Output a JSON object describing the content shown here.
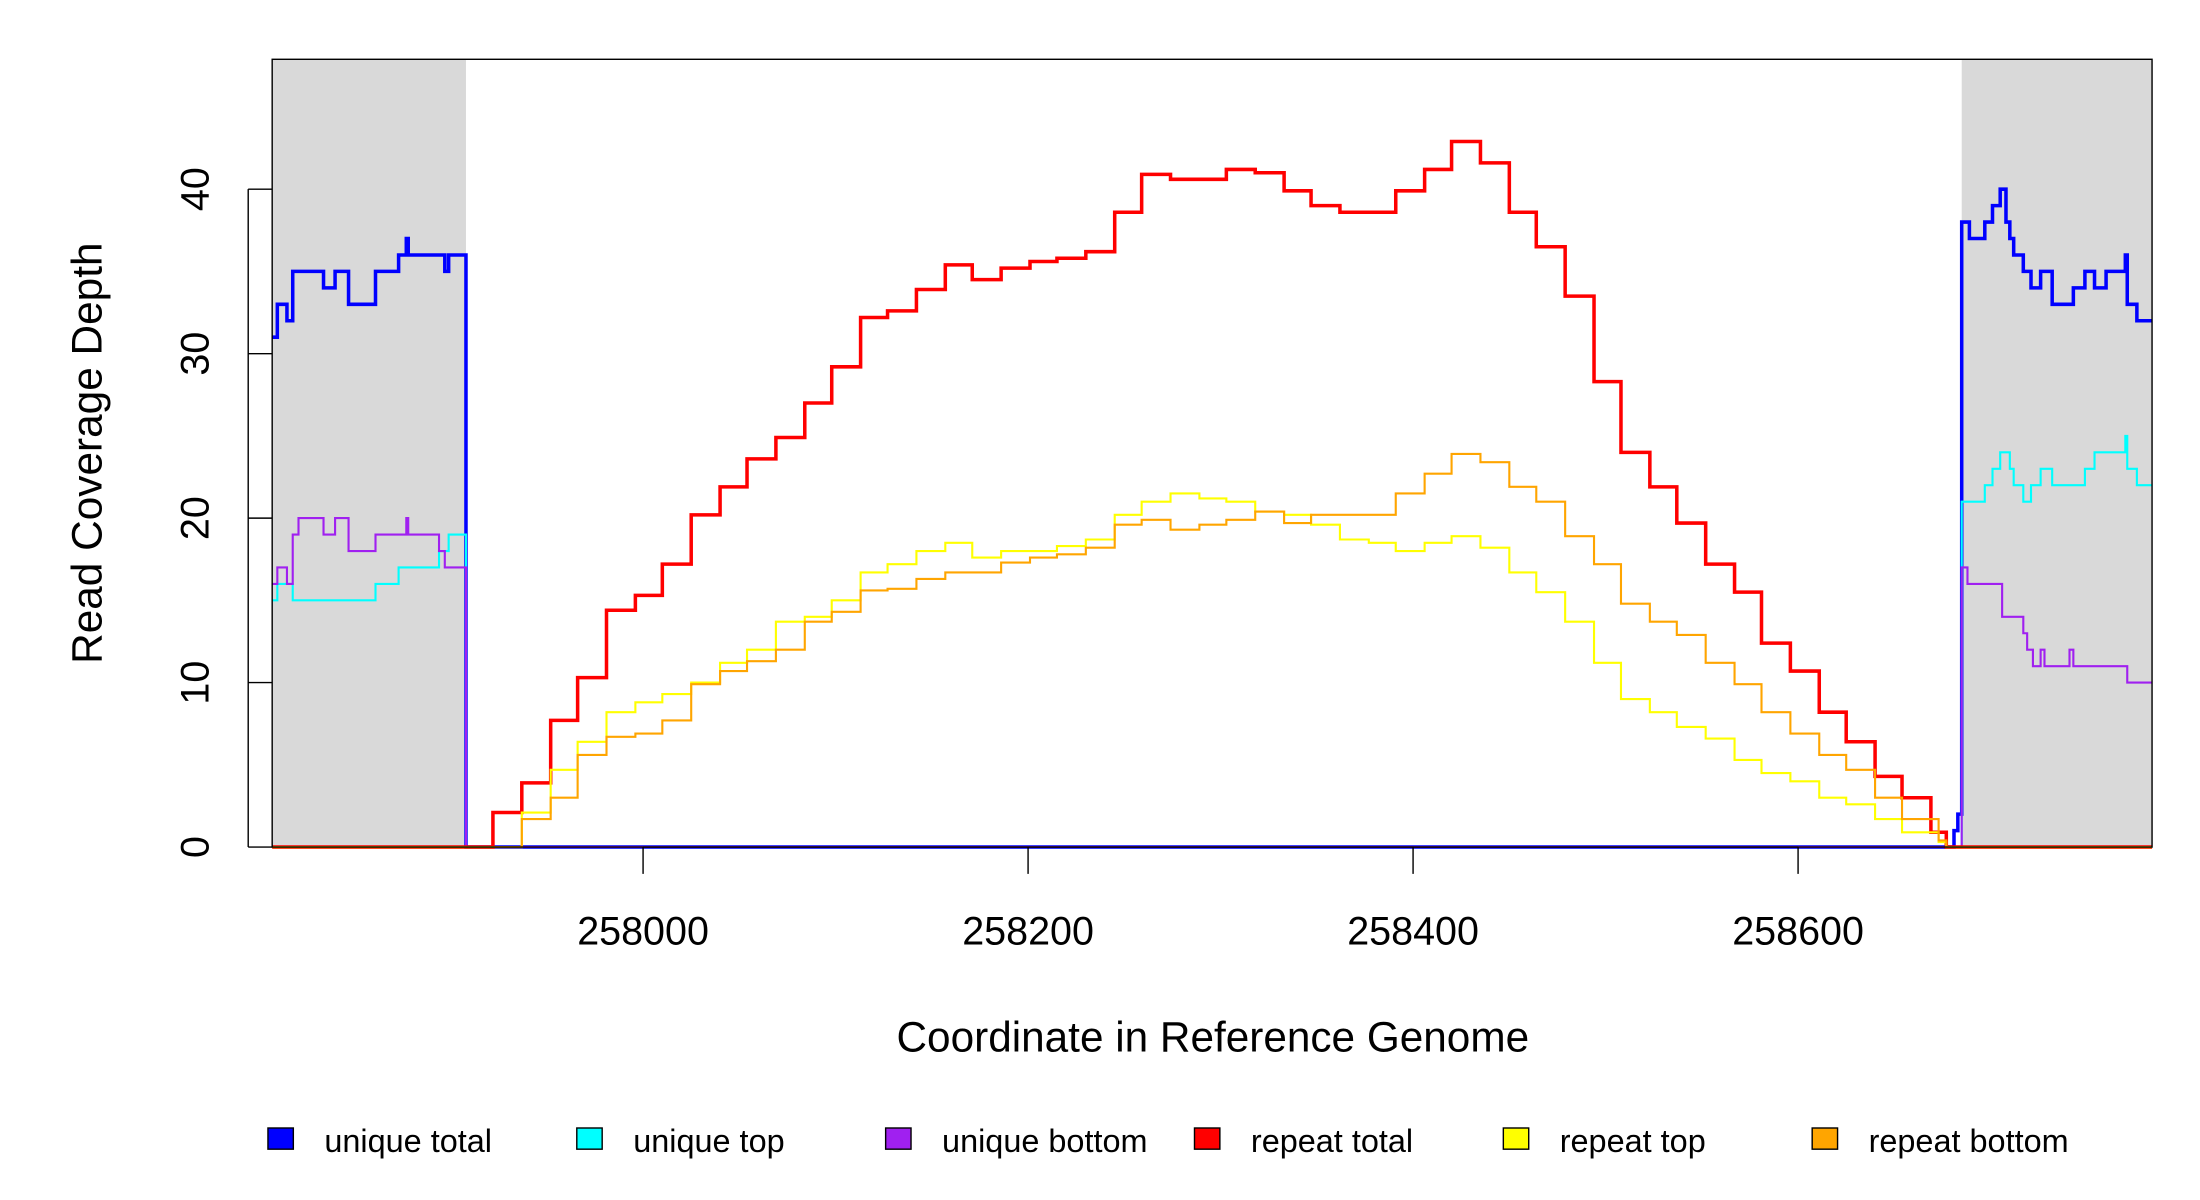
{
  "chart_data": {
    "type": "line",
    "xlabel": "Coordinate in Reference Genome",
    "ylabel": "Read Coverage Depth",
    "xlim": [
      257807,
      258784
    ],
    "ylim": [
      0,
      48
    ],
    "xticks": [
      258000,
      258200,
      258400,
      258600
    ],
    "xtick_labels": [
      "258000",
      "258200",
      "258400",
      "258600"
    ],
    "yticks": [
      0,
      10,
      20,
      30,
      40
    ],
    "ytick_labels": [
      "0",
      "10",
      "20",
      "30",
      "40"
    ],
    "shaded_regions": [
      [
        257807,
        257908
      ],
      [
        258685,
        258784
      ]
    ],
    "shade_color": "#d9d9d9",
    "legend_placement": "bottom",
    "series": [
      {
        "name": "unique total",
        "color": "#0000ff",
        "width": 2.5,
        "points": [
          [
            257807,
            31
          ],
          [
            257810,
            33
          ],
          [
            257815,
            32
          ],
          [
            257818,
            35
          ],
          [
            257834,
            34
          ],
          [
            257840,
            35
          ],
          [
            257847,
            33
          ],
          [
            257861,
            35
          ],
          [
            257873,
            36
          ],
          [
            257877,
            37
          ],
          [
            257878,
            36
          ],
          [
            257897,
            35
          ],
          [
            257899,
            36
          ],
          [
            257908,
            0
          ],
          [
            258681,
            1
          ],
          [
            258683,
            2
          ],
          [
            258685,
            38
          ],
          [
            258689,
            37
          ],
          [
            258697,
            38
          ],
          [
            258701,
            39
          ],
          [
            258705,
            40
          ],
          [
            258708,
            38
          ],
          [
            258710,
            37
          ],
          [
            258712,
            36
          ],
          [
            258717,
            35
          ],
          [
            258721,
            34
          ],
          [
            258726,
            35
          ],
          [
            258732,
            33
          ],
          [
            258743,
            34
          ],
          [
            258749,
            35
          ],
          [
            258754,
            34
          ],
          [
            258760,
            35
          ],
          [
            258770,
            36
          ],
          [
            258771,
            33
          ],
          [
            258776,
            32
          ],
          [
            258784,
            32
          ]
        ]
      },
      {
        "name": "unique top",
        "color": "#00ffff",
        "width": 1.5,
        "points": [
          [
            257807,
            15
          ],
          [
            257810,
            16
          ],
          [
            257818,
            15
          ],
          [
            257861,
            16
          ],
          [
            257873,
            17
          ],
          [
            257894,
            18
          ],
          [
            257899,
            19
          ],
          [
            257908,
            0
          ],
          [
            258685,
            21
          ],
          [
            258697,
            22
          ],
          [
            258701,
            23
          ],
          [
            258705,
            24
          ],
          [
            258710,
            23
          ],
          [
            258712,
            22
          ],
          [
            258717,
            21
          ],
          [
            258721,
            22
          ],
          [
            258726,
            23
          ],
          [
            258732,
            22
          ],
          [
            258749,
            23
          ],
          [
            258754,
            24
          ],
          [
            258770,
            25
          ],
          [
            258771,
            23
          ],
          [
            258776,
            22
          ],
          [
            258784,
            22
          ]
        ]
      },
      {
        "name": "unique bottom",
        "color": "#a020f0",
        "width": 1.5,
        "points": [
          [
            257807,
            16
          ],
          [
            257810,
            17
          ],
          [
            257815,
            16
          ],
          [
            257818,
            19
          ],
          [
            257821,
            20
          ],
          [
            257834,
            19
          ],
          [
            257840,
            20
          ],
          [
            257847,
            18
          ],
          [
            257861,
            19
          ],
          [
            257877,
            20
          ],
          [
            257878,
            19
          ],
          [
            257894,
            18
          ],
          [
            257897,
            17
          ],
          [
            257908,
            0
          ],
          [
            258685,
            17
          ],
          [
            258688,
            16
          ],
          [
            258706,
            14
          ],
          [
            258717,
            13
          ],
          [
            258719,
            12
          ],
          [
            258722,
            11
          ],
          [
            258726,
            12
          ],
          [
            258728,
            11
          ],
          [
            258741,
            12
          ],
          [
            258743,
            11
          ],
          [
            258771,
            10
          ],
          [
            258784,
            10
          ]
        ]
      },
      {
        "name": "repeat total",
        "color": "#ff0000",
        "width": 2.5,
        "points": [
          [
            257807,
            0
          ],
          [
            257908,
            0
          ],
          [
            257922,
            2.1
          ],
          [
            257937,
            3.9
          ],
          [
            257952,
            7.7
          ],
          [
            257966,
            10.3
          ],
          [
            257981,
            14.4
          ],
          [
            257996,
            15.3
          ],
          [
            258010,
            17.2
          ],
          [
            258025,
            20.2
          ],
          [
            258040,
            21.9
          ],
          [
            258054,
            23.6
          ],
          [
            258069,
            24.9
          ],
          [
            258084,
            27
          ],
          [
            258098,
            29.2
          ],
          [
            258113,
            32.2
          ],
          [
            258127,
            32.6
          ],
          [
            258142,
            33.9
          ],
          [
            258157,
            35.4
          ],
          [
            258171,
            34.5
          ],
          [
            258186,
            35.2
          ],
          [
            258201,
            35.6
          ],
          [
            258215,
            35.8
          ],
          [
            258230,
            36.2
          ],
          [
            258245,
            38.6
          ],
          [
            258259,
            40.9
          ],
          [
            258274,
            40.6
          ],
          [
            258289,
            40.6
          ],
          [
            258303,
            41.2
          ],
          [
            258318,
            41
          ],
          [
            258333,
            39.9
          ],
          [
            258347,
            39
          ],
          [
            258362,
            38.6
          ],
          [
            258377,
            38.6
          ],
          [
            258391,
            39.9
          ],
          [
            258406,
            41.2
          ],
          [
            258420,
            42.9
          ],
          [
            258435,
            41.6
          ],
          [
            258450,
            38.6
          ],
          [
            258464,
            36.5
          ],
          [
            258479,
            33.5
          ],
          [
            258494,
            28.3
          ],
          [
            258508,
            24
          ],
          [
            258523,
            21.9
          ],
          [
            258537,
            19.7
          ],
          [
            258552,
            17.2
          ],
          [
            258567,
            15.5
          ],
          [
            258581,
            12.4
          ],
          [
            258596,
            10.7
          ],
          [
            258611,
            8.2
          ],
          [
            258625,
            6.4
          ],
          [
            258640,
            4.3
          ],
          [
            258654,
            3
          ],
          [
            258669,
            0.9
          ],
          [
            258677,
            0
          ],
          [
            258784,
            0
          ]
        ]
      },
      {
        "name": "repeat top",
        "color": "#ffff00",
        "width": 1.5,
        "points": [
          [
            257807,
            0
          ],
          [
            257908,
            0
          ],
          [
            257937,
            2.1
          ],
          [
            257952,
            4.7
          ],
          [
            257966,
            6.4
          ],
          [
            257981,
            8.2
          ],
          [
            257996,
            8.8
          ],
          [
            258010,
            9.3
          ],
          [
            258025,
            10
          ],
          [
            258040,
            11.2
          ],
          [
            258054,
            12
          ],
          [
            258069,
            13.7
          ],
          [
            258084,
            14
          ],
          [
            258098,
            15
          ],
          [
            258113,
            16.7
          ],
          [
            258127,
            17.2
          ],
          [
            258142,
            18
          ],
          [
            258157,
            18.5
          ],
          [
            258171,
            17.6
          ],
          [
            258186,
            18
          ],
          [
            258201,
            18
          ],
          [
            258215,
            18.3
          ],
          [
            258230,
            18.7
          ],
          [
            258245,
            20.2
          ],
          [
            258259,
            21
          ],
          [
            258274,
            21.5
          ],
          [
            258289,
            21.2
          ],
          [
            258303,
            21
          ],
          [
            258318,
            20.4
          ],
          [
            258333,
            20.2
          ],
          [
            258347,
            19.6
          ],
          [
            258362,
            18.7
          ],
          [
            258377,
            18.5
          ],
          [
            258391,
            18
          ],
          [
            258406,
            18.5
          ],
          [
            258420,
            18.9
          ],
          [
            258435,
            18.2
          ],
          [
            258450,
            16.7
          ],
          [
            258464,
            15.5
          ],
          [
            258479,
            13.7
          ],
          [
            258494,
            11.2
          ],
          [
            258508,
            9
          ],
          [
            258523,
            8.2
          ],
          [
            258537,
            7.3
          ],
          [
            258552,
            6.6
          ],
          [
            258567,
            5.3
          ],
          [
            258581,
            4.5
          ],
          [
            258596,
            4
          ],
          [
            258611,
            3
          ],
          [
            258625,
            2.6
          ],
          [
            258640,
            1.7
          ],
          [
            258654,
            0.9
          ],
          [
            258673,
            0.3
          ],
          [
            258677,
            0
          ],
          [
            258784,
            0
          ]
        ]
      },
      {
        "name": "repeat bottom",
        "color": "#ffa500",
        "width": 1.5,
        "points": [
          [
            257807,
            0
          ],
          [
            257908,
            0
          ],
          [
            257937,
            1.7
          ],
          [
            257952,
            3
          ],
          [
            257966,
            5.6
          ],
          [
            257981,
            6.7
          ],
          [
            257996,
            6.9
          ],
          [
            258010,
            7.7
          ],
          [
            258025,
            9.9
          ],
          [
            258040,
            10.7
          ],
          [
            258054,
            11.3
          ],
          [
            258069,
            12
          ],
          [
            258084,
            13.7
          ],
          [
            258098,
            14.3
          ],
          [
            258113,
            15.6
          ],
          [
            258127,
            15.7
          ],
          [
            258142,
            16.3
          ],
          [
            258157,
            16.7
          ],
          [
            258171,
            16.7
          ],
          [
            258186,
            17.3
          ],
          [
            258201,
            17.6
          ],
          [
            258215,
            17.8
          ],
          [
            258230,
            18.2
          ],
          [
            258245,
            19.6
          ],
          [
            258259,
            19.9
          ],
          [
            258274,
            19.3
          ],
          [
            258289,
            19.6
          ],
          [
            258303,
            19.9
          ],
          [
            258318,
            20.4
          ],
          [
            258333,
            19.7
          ],
          [
            258347,
            20.2
          ],
          [
            258362,
            20.2
          ],
          [
            258377,
            20.2
          ],
          [
            258391,
            21.5
          ],
          [
            258406,
            22.7
          ],
          [
            258420,
            23.9
          ],
          [
            258435,
            23.4
          ],
          [
            258450,
            21.9
          ],
          [
            258464,
            21
          ],
          [
            258479,
            18.9
          ],
          [
            258494,
            17.2
          ],
          [
            258508,
            14.8
          ],
          [
            258523,
            13.7
          ],
          [
            258537,
            12.9
          ],
          [
            258552,
            11.2
          ],
          [
            258567,
            9.9
          ],
          [
            258581,
            8.2
          ],
          [
            258596,
            6.9
          ],
          [
            258611,
            5.6
          ],
          [
            258625,
            4.7
          ],
          [
            258640,
            3
          ],
          [
            258654,
            1.7
          ],
          [
            258673,
            0.4
          ],
          [
            258677,
            0
          ],
          [
            258784,
            0
          ]
        ]
      }
    ]
  }
}
